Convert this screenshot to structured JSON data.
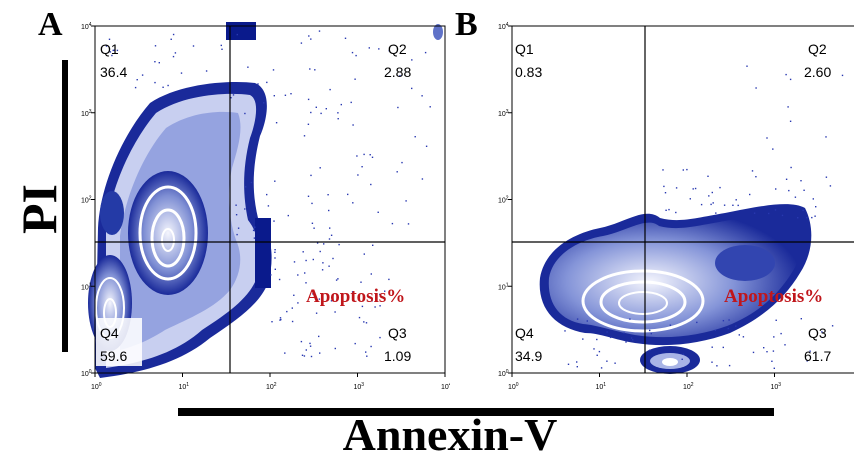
{
  "figure": {
    "y_axis_label": "PI",
    "x_axis_label": "Annexin-V"
  },
  "panels": [
    {
      "letter": "A",
      "annotation": "Apoptosis%",
      "quadrants": {
        "q1": {
          "name": "Q1",
          "value": "36.4"
        },
        "q2": {
          "name": "Q2",
          "value": "2.88"
        },
        "q3": {
          "name": "Q3",
          "value": "1.09"
        },
        "q4": {
          "name": "Q4",
          "value": "59.6"
        }
      }
    },
    {
      "letter": "B",
      "annotation": "Apoptosis%",
      "quadrants": {
        "q1": {
          "name": "Q1",
          "value": "0.83"
        },
        "q2": {
          "name": "Q2",
          "value": "2.60"
        },
        "q3": {
          "name": "Q3",
          "value": "61.7"
        },
        "q4": {
          "name": "Q4",
          "value": "34.9"
        }
      }
    }
  ],
  "chart_data": [
    {
      "type": "heatmap",
      "x_scale": "log",
      "y_scale": "log",
      "xlim": [
        1,
        10000
      ],
      "ylim": [
        1,
        10000
      ],
      "x_ticks": [
        "10^0",
        "10^1",
        "10^2",
        "10^3",
        "10^4"
      ],
      "y_ticks": [
        "10^0",
        "10^1",
        "10^2",
        "10^3",
        "10^4"
      ],
      "gate_x": 35,
      "gate_y": 35,
      "quadrants": [
        {
          "name": "Q1",
          "percent": 36.4
        },
        {
          "name": "Q2",
          "percent": 2.88
        },
        {
          "name": "Q3",
          "percent": 1.09
        },
        {
          "name": "Q4",
          "percent": 59.6
        }
      ]
    },
    {
      "type": "heatmap",
      "x_scale": "log",
      "y_scale": "log",
      "xlim": [
        1,
        10000
      ],
      "ylim": [
        1,
        10000
      ],
      "x_ticks": [
        "10^0",
        "10^1",
        "10^2",
        "10^3",
        "10^4"
      ],
      "y_ticks": [
        "10^0",
        "10^1",
        "10^2",
        "10^3",
        "10^4"
      ],
      "gate_x": 35,
      "gate_y": 35,
      "quadrants": [
        {
          "name": "Q1",
          "percent": 0.83
        },
        {
          "name": "Q2",
          "percent": 2.6
        },
        {
          "name": "Q3",
          "percent": 61.7
        },
        {
          "name": "Q4",
          "percent": 34.9
        }
      ]
    }
  ],
  "colors": {
    "density_dark": "#0a1a8c",
    "density_light": "#eef0fb",
    "annotation": "#c0161b"
  }
}
